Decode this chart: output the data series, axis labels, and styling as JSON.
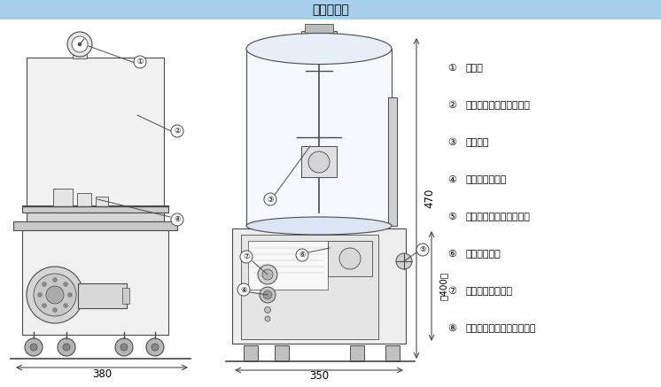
{
  "title": "外形寸法図",
  "title_bg": "#a8cfea",
  "bg": "#ffffff",
  "lc": "#4a4a4a",
  "legend": [
    {
      "n": "①",
      "t": "真空計"
    },
    {
      "n": "②",
      "t": "真空槽（透明アクリル）"
    },
    {
      "n": "③",
      "t": "攪拌羽根"
    },
    {
      "n": "④",
      "t": "タンクホルダー"
    },
    {
      "n": "⑤",
      "t": "真空排気切り替えバルブ"
    },
    {
      "n": "⑥",
      "t": "攪拌タイマー"
    },
    {
      "n": "⑦",
      "t": "回転数変速ツマミ"
    },
    {
      "n": "⑧",
      "t": "回転方向切り替えスイッチ"
    }
  ],
  "note_color": "#222222",
  "dim_color": "#333333"
}
